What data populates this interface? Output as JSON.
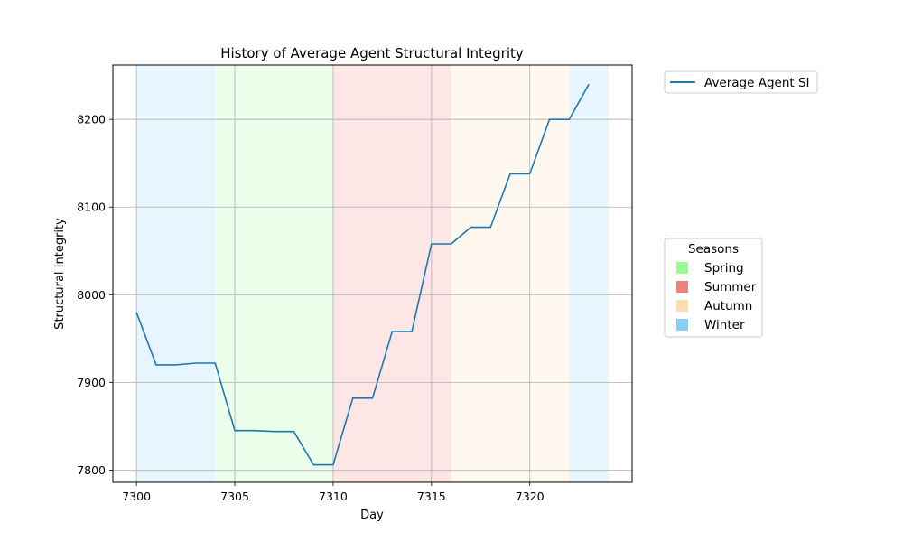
{
  "chart_data": {
    "type": "line",
    "title": "History of Average Agent Structural Integrity",
    "xlabel": "Day",
    "ylabel": "Structural Integrity",
    "xlim": [
      7298.8,
      7325.2
    ],
    "ylim": [
      7786,
      8262
    ],
    "xticks": [
      7300,
      7305,
      7310,
      7315,
      7320
    ],
    "yticks": [
      7800,
      7900,
      8000,
      8100,
      8200
    ],
    "grid": true,
    "series": [
      {
        "name": "Average Agent SI",
        "color": "#1f77b4",
        "x": [
          7300,
          7301,
          7302,
          7303,
          7304,
          7305,
          7306,
          7307,
          7308,
          7309,
          7310,
          7311,
          7312,
          7313,
          7314,
          7315,
          7316,
          7317,
          7318,
          7319,
          7320,
          7321,
          7322,
          7323
        ],
        "y": [
          7980,
          7920,
          7920,
          7922,
          7922,
          7845,
          7845,
          7844,
          7844,
          7806,
          7806,
          7882,
          7882,
          7958,
          7958,
          8058,
          8058,
          8077,
          8077,
          8138,
          8138,
          8200,
          8200,
          8240
        ]
      }
    ],
    "seasons": [
      {
        "season": "Winter",
        "start": 7300,
        "end": 7304
      },
      {
        "season": "Spring",
        "start": 7304,
        "end": 7310
      },
      {
        "season": "Summer",
        "start": 7310,
        "end": 7316
      },
      {
        "season": "Autumn",
        "start": 7316,
        "end": 7322
      },
      {
        "season": "Winter",
        "start": 7322,
        "end": 7324
      }
    ],
    "season_colors": {
      "Spring": "#98fb98",
      "Summer": "#f08080",
      "Autumn": "#ffdead",
      "Winter": "#87cefa"
    },
    "legend_placement": "right",
    "seasons_legend": {
      "title": "Seasons",
      "entries": [
        "Spring",
        "Summer",
        "Autumn",
        "Winter"
      ]
    }
  }
}
